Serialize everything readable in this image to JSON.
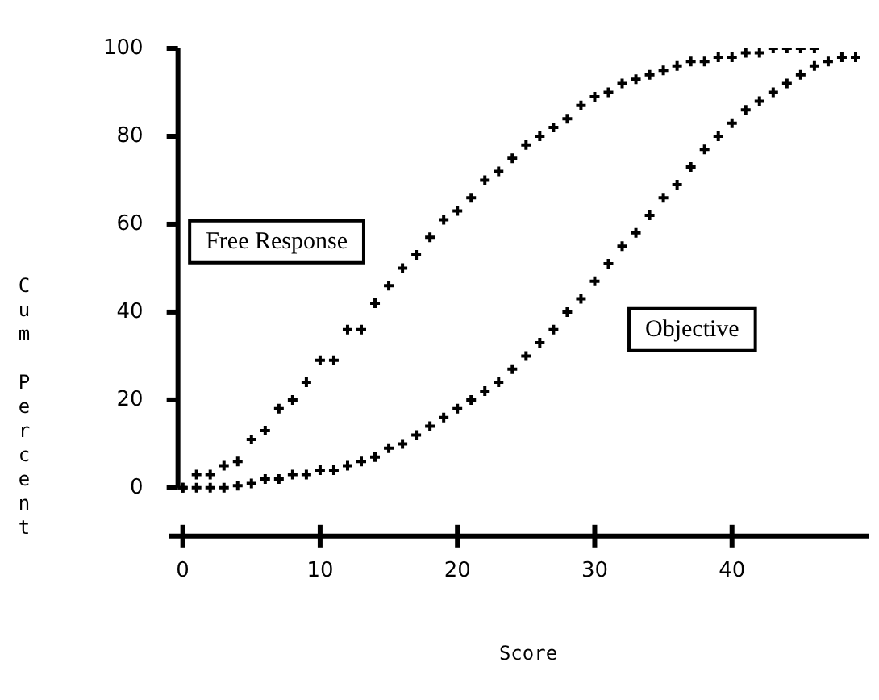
{
  "chart_data": {
    "type": "scatter",
    "xlabel": "Score",
    "ylabel": "Cum Percent",
    "marker": "cross",
    "legend": false,
    "grid": false,
    "xlim": [
      -1,
      50
    ],
    "xticks": [
      0,
      10,
      20,
      30,
      40
    ],
    "ylim": [
      -11,
      100
    ],
    "yticks": [
      0,
      20,
      40,
      60,
      80,
      100
    ],
    "series": [
      {
        "name": "Free Response",
        "color": "#000000",
        "x": [
          0,
          1,
          2,
          3,
          4,
          5,
          6,
          7,
          8,
          9,
          10,
          11,
          12,
          13,
          14,
          15,
          16,
          17,
          18,
          19,
          20,
          21,
          22,
          23,
          24,
          25,
          26,
          27,
          28,
          29,
          30,
          31,
          32,
          33,
          34,
          35,
          36,
          37,
          38,
          39,
          40,
          41,
          42,
          43,
          44,
          45,
          46
        ],
        "values": [
          0,
          3,
          3,
          5,
          6,
          11,
          13,
          18,
          20,
          24,
          29,
          29,
          36,
          36,
          42,
          46,
          50,
          53,
          57,
          61,
          63,
          66,
          70,
          72,
          75,
          78,
          80,
          82,
          84,
          87,
          89,
          90,
          92,
          93,
          94,
          95,
          96,
          97,
          97,
          98,
          98,
          99,
          99,
          100,
          100,
          100,
          100
        ]
      },
      {
        "name": "Objective",
        "color": "#000000",
        "x": [
          0,
          1,
          2,
          3,
          4,
          5,
          6,
          7,
          8,
          9,
          10,
          11,
          12,
          13,
          14,
          15,
          16,
          17,
          18,
          19,
          20,
          21,
          22,
          23,
          24,
          25,
          26,
          27,
          28,
          29,
          30,
          31,
          32,
          33,
          34,
          35,
          36,
          37,
          38,
          39,
          40,
          41,
          42,
          43,
          44,
          45,
          46,
          47,
          48,
          49
        ],
        "values": [
          0,
          0,
          0,
          0,
          0.5,
          1,
          2,
          2,
          3,
          3,
          4,
          4,
          5,
          6,
          7,
          9,
          10,
          12,
          14,
          16,
          18,
          20,
          22,
          24,
          27,
          30,
          33,
          36,
          40,
          43,
          47,
          51,
          55,
          58,
          62,
          66,
          69,
          73,
          77,
          80,
          83,
          86,
          88,
          90,
          92,
          94,
          96,
          97,
          98,
          98
        ]
      }
    ]
  }
}
